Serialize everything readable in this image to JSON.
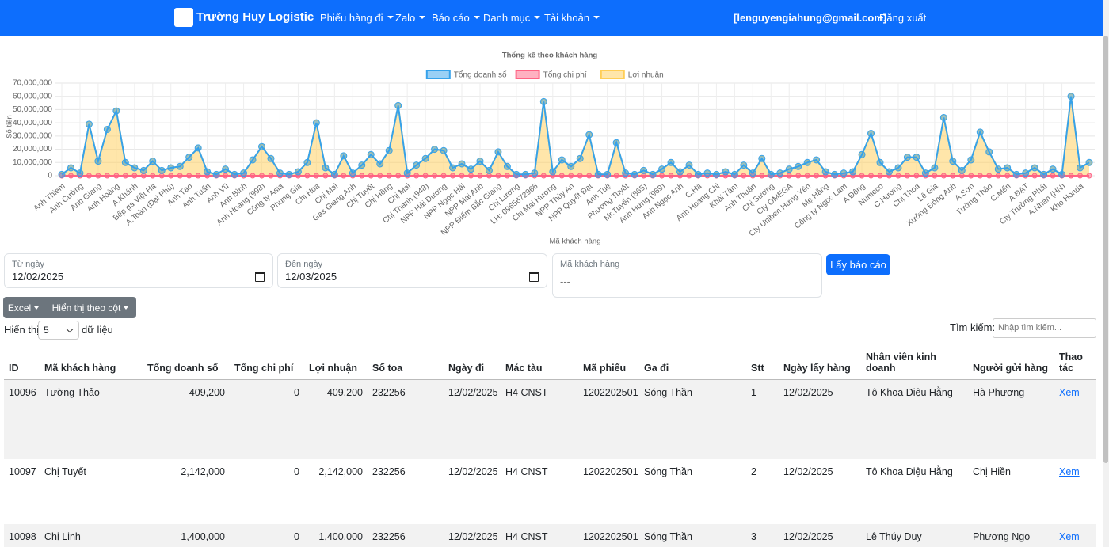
{
  "navbar": {
    "brand": "Trường Huy Logistic",
    "menu": [
      "Phiếu hàng đi",
      "Zalo",
      "Báo cáo",
      "Danh mục",
      "Tài khoản"
    ],
    "user": "[lenguyengiahung@gmail.com]",
    "logout": "Đăng xuất"
  },
  "chart_data": {
    "type": "line",
    "title": "Thống kê theo khách hàng",
    "x_label": "Mã khách hàng",
    "y_label": "Số tiền",
    "legend": "top",
    "grid": true,
    "ylim": [
      0,
      70000000
    ],
    "yticks": [
      0,
      {
        "value": 10000000,
        "label": "10,000,000"
      },
      {
        "value": 20000000,
        "label": "20,000,000"
      },
      {
        "value": 30000000,
        "label": "30,000,000"
      },
      {
        "value": 40000000,
        "label": "40,000,000"
      },
      {
        "value": 50000000,
        "label": "50,000,000"
      },
      {
        "value": 60000000,
        "label": "60,000,000"
      },
      {
        "value": 70000000,
        "label": "70,000,000"
      }
    ],
    "categories": [
      "Anh Thiêm",
      null,
      "Anh Cường",
      null,
      "Anh Giang",
      null,
      "Anh Hoàng",
      null,
      "A.Khánh",
      null,
      "Bếp ga Việt Hà",
      null,
      "A.Toàn (Đại Phú)",
      null,
      "Anh Tạo",
      null,
      "Anh Tuấn",
      null,
      "Anh Vũ",
      null,
      "Anh Bình",
      null,
      "Anh Hoàng (998)",
      null,
      "Công ty Asia",
      null,
      "Phùng Gia",
      null,
      "Chị Hoa",
      null,
      "Chị Mai",
      null,
      "Gas Giang Anh",
      null,
      "Chị Tuyết",
      null,
      "Chị Hồng",
      null,
      "Chị Mai",
      null,
      "Chị Thanh (948)",
      null,
      "NPP Hải Dương",
      null,
      "NPP Ngọc Hải",
      null,
      "NPP Mai Anh",
      null,
      "NPP Điểm Bắc Giang",
      null,
      "Chị Lương",
      null,
      "LH: 0965672966",
      null,
      "Chị Mai Hương",
      null,
      "NPP Thùy An",
      null,
      "NPP Quyết Đạt",
      null,
      "Anh Tuệ",
      null,
      "Phương Tuyết",
      null,
      "Mr.Tuyến (865)",
      null,
      "Anh Hưng (969)",
      null,
      "Anh Ngọc Anh",
      null,
      "C.Hà",
      null,
      "Anh Hoàng Chi",
      null,
      "Khải Tâm",
      null,
      "Anh Thuận",
      null,
      "Chị Sương",
      null,
      "Cty OMEGA",
      null,
      "Cty Uniben Hưng Yên",
      null,
      "Mẹ Hằng",
      null,
      "Công ty Ngọc Lâm",
      null,
      "A Đông",
      null,
      "Numeco",
      null,
      "C.Hương",
      null,
      "Chị Thoa",
      null,
      "Lê Gia",
      null,
      "Xưởng Đông Anh",
      null,
      "A.Sơn",
      null,
      "Tường Thảo",
      null,
      "C.Mến",
      null,
      "A.ĐẠT",
      null,
      "Cty Trường Phát",
      null,
      "A.Nhân (HN)",
      null,
      "Kho Honda",
      null
    ],
    "series": [
      {
        "name": "Tổng doanh số",
        "color": "#36a2eb",
        "values": [
          1000000,
          6000000,
          2000000,
          39000000,
          11000000,
          35000000,
          49000000,
          10000000,
          6000000,
          4000000,
          11000000,
          4000000,
          6000000,
          7000000,
          14000000,
          21000000,
          3000000,
          1000000,
          5000000,
          1000000,
          2000000,
          12000000,
          22000000,
          13000000,
          2000000,
          1000000,
          3000000,
          10000000,
          40000000,
          6000000,
          1000000,
          15000000,
          2000000,
          8000000,
          16000000,
          9000000,
          19000000,
          53000000,
          2000000,
          8000000,
          13000000,
          20000000,
          19000000,
          6000000,
          9000000,
          5000000,
          11000000,
          4000000,
          18000000,
          7000000,
          1000000,
          1000000,
          2000000,
          56000000,
          3000000,
          12000000,
          7000000,
          13000000,
          31000000,
          1000000,
          1000000,
          25000000,
          2000000,
          1000000,
          4000000,
          1000000,
          5000000,
          10000000,
          3000000,
          8000000,
          1000000,
          2000000,
          1000000,
          3000000,
          1000000,
          8000000,
          2000000,
          13000000,
          1000000,
          2000000,
          5000000,
          7000000,
          10000000,
          12000000,
          3000000,
          1000000,
          2000000,
          3000000,
          16000000,
          32000000,
          10000000,
          3000000,
          6000000,
          14000000,
          14000000,
          2000000,
          6000000,
          44000000,
          11000000,
          4000000,
          12000000,
          33000000,
          18000000,
          5000000,
          6000000,
          1000000,
          2000000,
          6000000,
          1000000,
          5000000,
          1000000,
          60000000,
          6000000,
          10000000
        ]
      },
      {
        "name": "Tổng chi phí",
        "color": "#ff6384",
        "values": [
          0,
          0,
          0,
          0,
          0,
          0,
          0,
          0,
          0,
          0,
          0,
          0,
          0,
          0,
          0,
          0,
          0,
          0,
          0,
          0,
          0,
          0,
          0,
          0,
          0,
          0,
          0,
          0,
          0,
          0,
          0,
          0,
          0,
          0,
          0,
          0,
          0,
          0,
          0,
          0,
          0,
          0,
          0,
          0,
          0,
          0,
          0,
          0,
          0,
          0,
          0,
          0,
          0,
          0,
          0,
          0,
          0,
          0,
          0,
          0,
          0,
          0,
          0,
          0,
          0,
          0,
          0,
          0,
          0,
          0,
          0,
          0,
          0,
          0,
          0,
          0,
          0,
          0,
          0,
          0,
          0,
          0,
          0,
          0,
          0,
          0,
          0,
          0,
          0,
          0,
          0,
          0,
          0,
          0,
          0,
          0,
          0,
          0,
          0,
          0,
          0,
          0,
          0,
          0,
          0,
          0,
          0,
          0,
          0,
          0,
          0,
          0,
          0,
          0
        ]
      },
      {
        "name": "Lợi nhuận",
        "color": "#ffce56",
        "values": [
          1000000,
          6000000,
          2000000,
          39000000,
          11000000,
          35000000,
          49000000,
          10000000,
          6000000,
          4000000,
          11000000,
          4000000,
          6000000,
          7000000,
          14000000,
          21000000,
          3000000,
          1000000,
          5000000,
          1000000,
          2000000,
          12000000,
          22000000,
          13000000,
          2000000,
          1000000,
          3000000,
          10000000,
          40000000,
          6000000,
          1000000,
          15000000,
          2000000,
          8000000,
          16000000,
          9000000,
          19000000,
          53000000,
          2000000,
          8000000,
          13000000,
          20000000,
          19000000,
          6000000,
          9000000,
          5000000,
          11000000,
          4000000,
          18000000,
          7000000,
          1000000,
          1000000,
          2000000,
          56000000,
          3000000,
          12000000,
          7000000,
          13000000,
          31000000,
          1000000,
          1000000,
          25000000,
          2000000,
          1000000,
          4000000,
          1000000,
          5000000,
          10000000,
          3000000,
          8000000,
          1000000,
          2000000,
          1000000,
          3000000,
          1000000,
          8000000,
          2000000,
          13000000,
          1000000,
          2000000,
          5000000,
          7000000,
          10000000,
          12000000,
          3000000,
          1000000,
          2000000,
          3000000,
          16000000,
          32000000,
          10000000,
          3000000,
          6000000,
          14000000,
          14000000,
          2000000,
          6000000,
          44000000,
          11000000,
          4000000,
          12000000,
          33000000,
          18000000,
          5000000,
          6000000,
          1000000,
          2000000,
          6000000,
          1000000,
          5000000,
          1000000,
          60000000,
          6000000,
          10000000
        ]
      }
    ]
  },
  "form": {
    "from_label": "Từ ngày",
    "from_value": "12/02/2025",
    "to_label": "Đến ngày",
    "to_value": "12/03/2025",
    "customer_label": "Mã khách hàng",
    "customer_placeholder": "---",
    "submit": "Lấy báo cáo"
  },
  "toolbar": {
    "buttons": [
      "Excel",
      "Hiển thị theo cột"
    ],
    "show": "Hiển thị",
    "page_size": "5",
    "entries": "dữ liệu",
    "search_label": "Tìm kiếm:",
    "search_placeholder": "Nhập tìm kiếm..."
  },
  "table": {
    "columns": [
      "ID",
      "Mã khách hàng",
      "Tổng doanh số",
      "Tổng chi phí",
      "Lợi nhuận",
      "Số toa",
      "Ngày đi",
      "Mác tàu",
      "Mã phiếu",
      "Ga đi",
      "Stt",
      "Ngày lấy hàng",
      "Nhân viên kinh doanh",
      "Người gửi hàng",
      "Thao tác"
    ],
    "rows": [
      [
        "10096",
        "Tường Thảo",
        "409,200",
        "0",
        "409,200",
        "232256",
        "12/02/2025",
        "H4 CNST",
        "1202202501",
        "Sóng Thần",
        "1",
        "12/02/2025",
        "Tô Khoa Diệu Hằng",
        "Hà Phương",
        "Xem"
      ],
      [
        "10097",
        "Chị Tuyết",
        "2,142,000",
        "0",
        "2,142,000",
        "232256",
        "12/02/2025",
        "H4 CNST",
        "1202202501",
        "Sóng Thần",
        "2",
        "12/02/2025",
        "Tô Khoa Diệu Hằng",
        "Chị Hiền",
        "Xem"
      ],
      [
        "10098",
        "Chị Linh",
        "1,400,000",
        "0",
        "1,400,000",
        "232256",
        "12/02/2025",
        "H4 CNST",
        "1202202501",
        "Sóng Thần",
        "3",
        "12/02/2025",
        "Lê Thúy Duy",
        "Phương Ngọ",
        "Xem"
      ]
    ]
  }
}
